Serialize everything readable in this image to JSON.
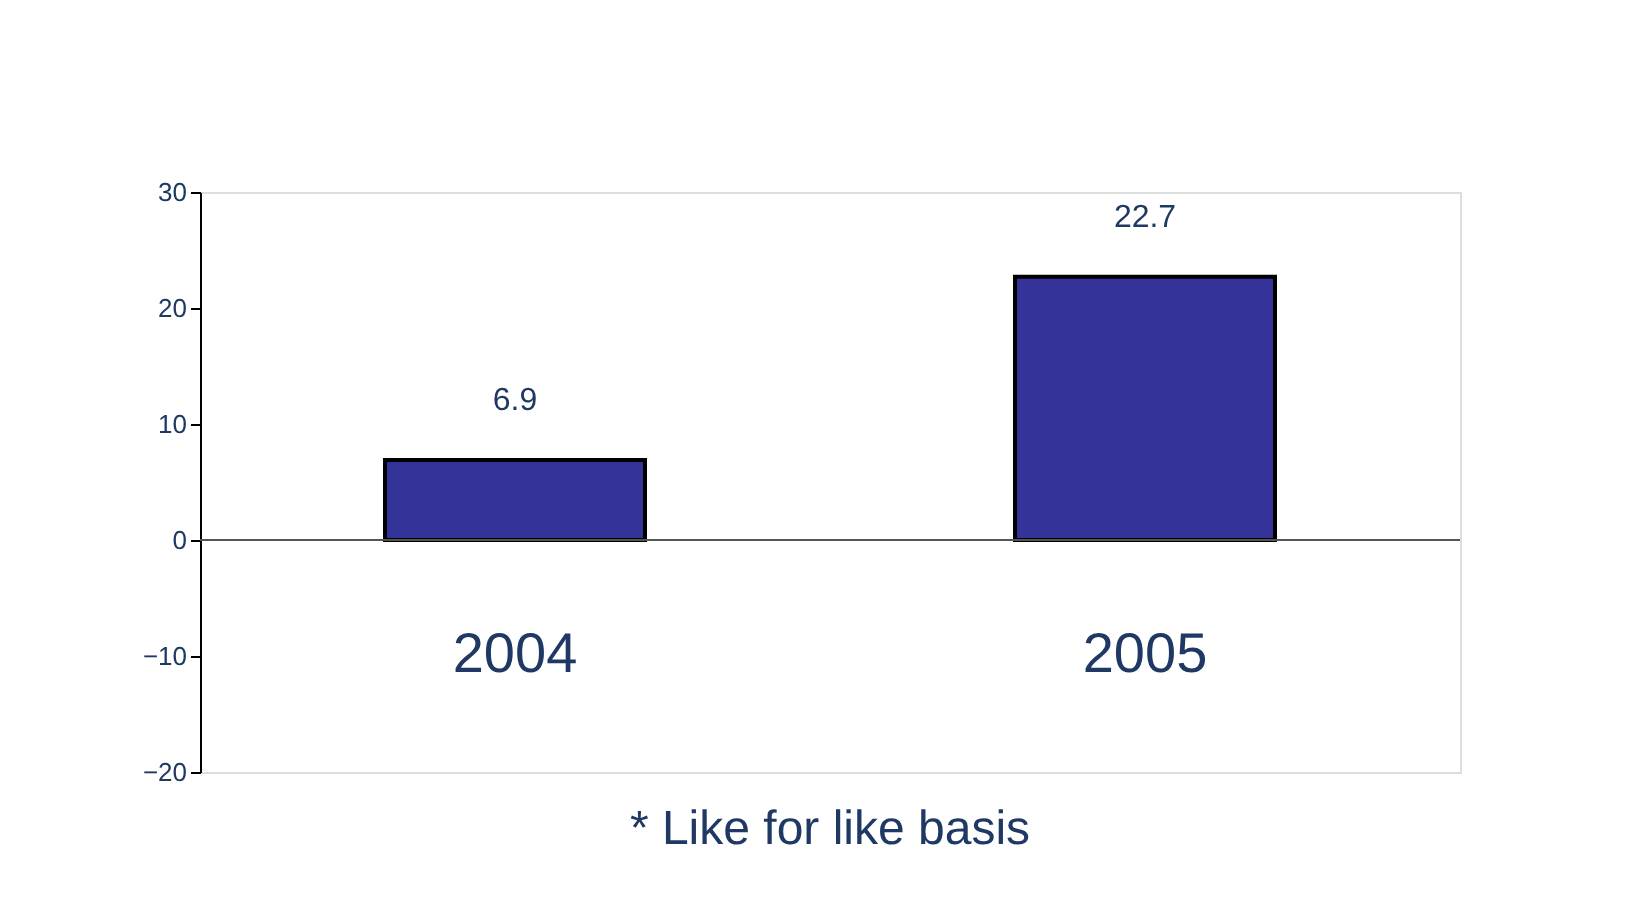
{
  "chart_data": {
    "type": "bar",
    "categories": [
      "2004",
      "2005"
    ],
    "values": [
      6.9,
      22.7
    ],
    "color": "#333399",
    "ylim": [
      -20,
      30
    ],
    "yticks": [
      -20,
      -10,
      0,
      10,
      20,
      30
    ],
    "grid": false,
    "data_labels": true,
    "annotations": [
      "* Like for like basis"
    ]
  }
}
